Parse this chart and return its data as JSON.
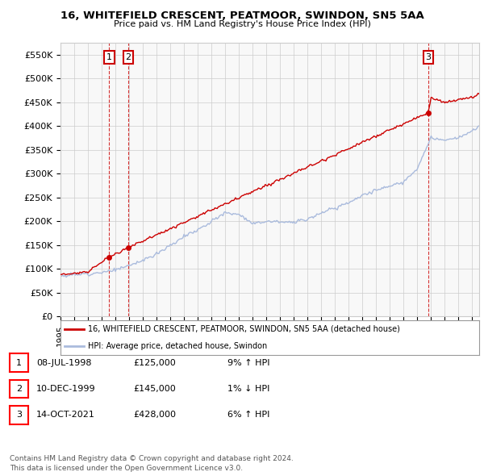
{
  "title": "16, WHITEFIELD CRESCENT, PEATMOOR, SWINDON, SN5 5AA",
  "subtitle": "Price paid vs. HM Land Registry's House Price Index (HPI)",
  "ylim": [
    0,
    575000
  ],
  "yticks": [
    0,
    50000,
    100000,
    150000,
    200000,
    250000,
    300000,
    350000,
    400000,
    450000,
    500000,
    550000
  ],
  "ytick_labels": [
    "£0",
    "£50K",
    "£100K",
    "£150K",
    "£200K",
    "£250K",
    "£300K",
    "£350K",
    "£400K",
    "£450K",
    "£500K",
    "£550K"
  ],
  "bg_color": "#ffffff",
  "grid_color": "#cccccc",
  "sale_prices": [
    125000,
    145000,
    428000
  ],
  "sale_labels": [
    "1",
    "2",
    "3"
  ],
  "hpi_line_color": "#aabbdd",
  "price_line_color": "#cc0000",
  "sale_marker_color": "#cc0000",
  "vline_color": "#cc0000",
  "legend_label_price": "16, WHITEFIELD CRESCENT, PEATMOOR, SWINDON, SN5 5AA (detached house)",
  "legend_label_hpi": "HPI: Average price, detached house, Swindon",
  "table_rows": [
    [
      "1",
      "08-JUL-1998",
      "£125,000",
      "9% ↑ HPI"
    ],
    [
      "2",
      "10-DEC-1999",
      "£145,000",
      "1% ↓ HPI"
    ],
    [
      "3",
      "14-OCT-2021",
      "£428,000",
      "6% ↑ HPI"
    ]
  ],
  "footnote": "Contains HM Land Registry data © Crown copyright and database right 2024.\nThis data is licensed under the Open Government Licence v3.0.",
  "xlim_start": 1995.0,
  "xlim_end": 2025.5,
  "sale_year_floats": [
    1998.54,
    1999.94,
    2021.79
  ]
}
